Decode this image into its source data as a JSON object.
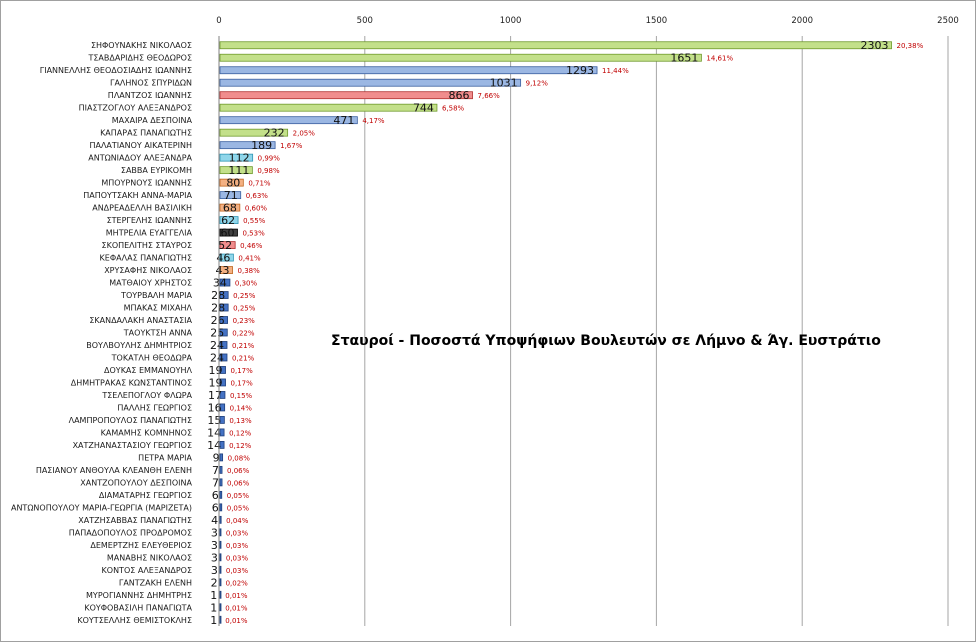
{
  "chart_data": {
    "type": "bar",
    "orientation": "horizontal",
    "title": "Σταυροί - Ποσοστά Υποψήφιων Βουλευτών σε Λήμνο & Άγ. Ευστράτιο",
    "xlim": [
      0,
      2500
    ],
    "xticks": [
      "0",
      "500",
      "1000",
      "1500",
      "2000",
      "2500"
    ],
    "xaxis_position": "top",
    "grid": true,
    "legend": "none",
    "categories": [
      "ΣΗΦΟΥΝΑΚΗΣ ΝΙΚΟΛΑΟΣ",
      "ΤΣΑΒΔΑΡΙΔΗΣ ΘΕΟΔΩΡΟΣ",
      "ΓΙΑΝΝΕΛΛΗΣ ΘΕΟΔΟΣΙΑΔΗΣ ΙΩΑΝΝΗΣ",
      "ΓΑΛΗΝΟΣ ΣΠΥΡΙΔΩΝ",
      "ΠΛΑΝΤΖΟΣ ΙΩΑΝΝΗΣ",
      "ΠΙΑΣΤΖΟΓΛΟΥ ΑΛΕΞΑΝΔΡΟΣ",
      "ΜΑΧΑΙΡΑ ΔΕΣΠΟΙΝΑ",
      "ΚΑΠΑΡΑΣ ΠΑΝΑΓΙΩΤΗΣ",
      "ΠΑΛΑΤΙΑΝΟΥ ΑΙΚΑΤΕΡΙΝΗ",
      "ΑΝΤΩΝΙΑΔΟΥ ΑΛΕΞΑΝΔΡΑ",
      "ΣΑΒΒΑ ΕΥΡΙΚΟΜΗ",
      "ΜΠΟΥΡΝΟΥΣ ΙΩΑΝΝΗΣ",
      "ΠΑΠΟΥΤΣΑΚΗ ΑΝΝΑ-ΜΑΡΙΑ",
      "ΑΝΔΡΕΑΔΕΛΛΗ ΒΑΣΙΛΙΚΗ",
      "ΣΤΕΡΓΕΛΗΣ ΙΩΑΝΝΗΣ",
      "ΜΗΤΡΕΛΙΑ ΕΥΑΓΓΕΛΙΑ",
      "ΣΚΟΠΕΛΙΤΗΣ ΣΤΑΥΡΟΣ",
      "ΚΕΦΑΛΑΣ ΠΑΝΑΓΙΩΤΗΣ",
      "ΧΡΥΣΑΦΗΣ ΝΙΚΟΛΑΟΣ",
      "ΜΑΤΘΑΙΟΥ ΧΡΗΣΤΟΣ",
      "ΤΟΥΡΒΑΛΗ ΜΑΡΙΑ",
      "ΜΠΑΚΑΣ ΜΙΧΑΗΛ",
      "ΣΚΑΝΔΑΛΑΚΗ ΑΝΑΣΤΑΣΙΑ",
      "ΤΑΟΥΚΤΣΗ ΑΝΝΑ",
      "ΒΟΥΛΒΟΥΛΗΣ ΔΗΜΗΤΡΙΟΣ",
      "ΤΟΚΑΤΛΗ ΘΕΟΔΩΡΑ",
      "ΔΟΥΚΑΣ ΕΜΜΑΝΟΥΗΛ",
      "ΔΗΜΗΤΡΑΚΑΣ ΚΩΝΣΤΑΝΤΙΝΟΣ",
      "ΤΣΕΛΕΠΟΓΛΟΥ ΦΛΩΡΑ",
      "ΠΑΛΛΗΣ ΓΕΩΡΓΙΟΣ",
      "ΛΑΜΠΡΟΠΟΥΛΟΣ ΠΑΝΑΓΙΩΤΗΣ",
      "ΚΑΜΑΜΗΣ ΚΟΜΝΗΝΟΣ",
      "ΧΑΤΖΗΑΝΑΣΤΑΣΙΟΥ ΓΕΩΡΓΙΟΣ",
      "ΠΕΤΡΑ ΜΑΡΙΑ",
      "ΠΑΣΙΑΝΟΥ ΑΝΘΟΥΛΑ ΚΛΕΑΝΘΗ ΕΛΕΝΗ",
      "ΧΑΝΤΖΟΠΟΥΛΟΥ ΔΕΣΠΟΙΝΑ",
      "ΔΙΑΜΑΤΑΡΗΣ ΓΕΩΡΓΙΟΣ",
      "ΑΝΤΩΝΟΠΟΥΛΟΥ ΜΑΡΙΑ-ΓΕΩΡΓΙΑ (ΜΑΡΙΖΕΤΑ)",
      "ΧΑΤΖΗΣΑΒΒΑΣ ΠΑΝΑΓΙΩΤΗΣ",
      "ΠΑΠΑΔΟΠΟΥΛΟΣ ΠΡΟΔΡΟΜΟΣ",
      "ΔΕΜΕΡΤΖΗΣ ΕΛΕΥΘΕΡΙΟΣ",
      "ΜΑΝΑΒΗΣ ΝΙΚΟΛΑΟΣ",
      "ΚΟΝΤΟΣ ΑΛΕΞΑΝΔΡΟΣ",
      "ΓΑΝΤΖΑΚΗ ΕΛΕΝΗ",
      "ΜΥΡΟΓΙΑΝΝΗΣ ΔΗΜΗΤΡΗΣ",
      "ΚΟΥΦΟΒΑΣΙΛΗ ΠΑΝΑΓΙΩΤΑ",
      "ΚΟΥΤΣΕΛΛΗΣ ΘΕΜΙΣΤΟΚΛΗΣ"
    ],
    "values": [
      2303,
      1651,
      1293,
      1031,
      866,
      744,
      471,
      232,
      189,
      112,
      111,
      80,
      71,
      68,
      62,
      60,
      52,
      46,
      43,
      34,
      28,
      28,
      26,
      25,
      24,
      24,
      19,
      19,
      17,
      16,
      15,
      14,
      14,
      9,
      7,
      7,
      6,
      6,
      4,
      3,
      3,
      3,
      3,
      2,
      1,
      1,
      1
    ],
    "percents": [
      "20,38%",
      "14,61%",
      "11,44%",
      "9,12%",
      "7,66%",
      "6,58%",
      "4,17%",
      "2,05%",
      "1,67%",
      "0,99%",
      "0,98%",
      "0,71%",
      "0,63%",
      "0,60%",
      "0,55%",
      "0,53%",
      "0,46%",
      "0,41%",
      "0,38%",
      "0,30%",
      "0,25%",
      "0,25%",
      "0,23%",
      "0,22%",
      "0,21%",
      "0,21%",
      "0,17%",
      "0,17%",
      "0,15%",
      "0,14%",
      "0,13%",
      "0,12%",
      "0,12%",
      "0,08%",
      "0,06%",
      "0,06%",
      "0,05%",
      "0,05%",
      "0,04%",
      "0,03%",
      "0,03%",
      "0,03%",
      "0,03%",
      "0,02%",
      "0,01%",
      "0,01%",
      "0,01%"
    ],
    "bar_colors": [
      "#c3e08a",
      "#c3e08a",
      "#9bb7e3",
      "#9bb7e3",
      "#f08d8d",
      "#c3e08a",
      "#9bb7e3",
      "#c3e08a",
      "#9bb7e3",
      "#8fd6ea",
      "#c3e08a",
      "#f4b183",
      "#9bb7e3",
      "#f4b183",
      "#8fd6ea",
      "#404040",
      "#f08d8d",
      "#8fd6ea",
      "#f4b183",
      "#4472c4",
      "#4472c4",
      "#4472c4",
      "#4472c4",
      "#4472c4",
      "#4472c4",
      "#4472c4",
      "#4472c4",
      "#4472c4",
      "#4472c4",
      "#4472c4",
      "#4472c4",
      "#4472c4",
      "#4472c4",
      "#4472c4",
      "#4472c4",
      "#4472c4",
      "#4472c4",
      "#4472c4",
      "#4472c4",
      "#4472c4",
      "#4472c4",
      "#4472c4",
      "#4472c4",
      "#4472c4",
      "#4472c4",
      "#4472c4",
      "#4472c4"
    ],
    "bar_edge_colors": [
      "#6f9a2c",
      "#6f9a2c",
      "#3a5f9f",
      "#3a5f9f",
      "#b03030",
      "#6f9a2c",
      "#3a5f9f",
      "#6f9a2c",
      "#3a5f9f",
      "#2f96b5",
      "#6f9a2c",
      "#c0661f",
      "#3a5f9f",
      "#c0661f",
      "#2f96b5",
      "#000000",
      "#b03030",
      "#2f96b5",
      "#c0661f",
      "#1f3f7a",
      "#1f3f7a",
      "#1f3f7a",
      "#1f3f7a",
      "#1f3f7a",
      "#1f3f7a",
      "#1f3f7a",
      "#1f3f7a",
      "#1f3f7a",
      "#1f3f7a",
      "#1f3f7a",
      "#1f3f7a",
      "#1f3f7a",
      "#1f3f7a",
      "#1f3f7a",
      "#1f3f7a",
      "#1f3f7a",
      "#1f3f7a",
      "#1f3f7a",
      "#1f3f7a",
      "#1f3f7a",
      "#1f3f7a",
      "#1f3f7a",
      "#1f3f7a",
      "#1f3f7a",
      "#1f3f7a",
      "#1f3f7a",
      "#1f3f7a"
    ],
    "grid_color": "#a6a6a6",
    "percent_label_color": "#c00000"
  }
}
